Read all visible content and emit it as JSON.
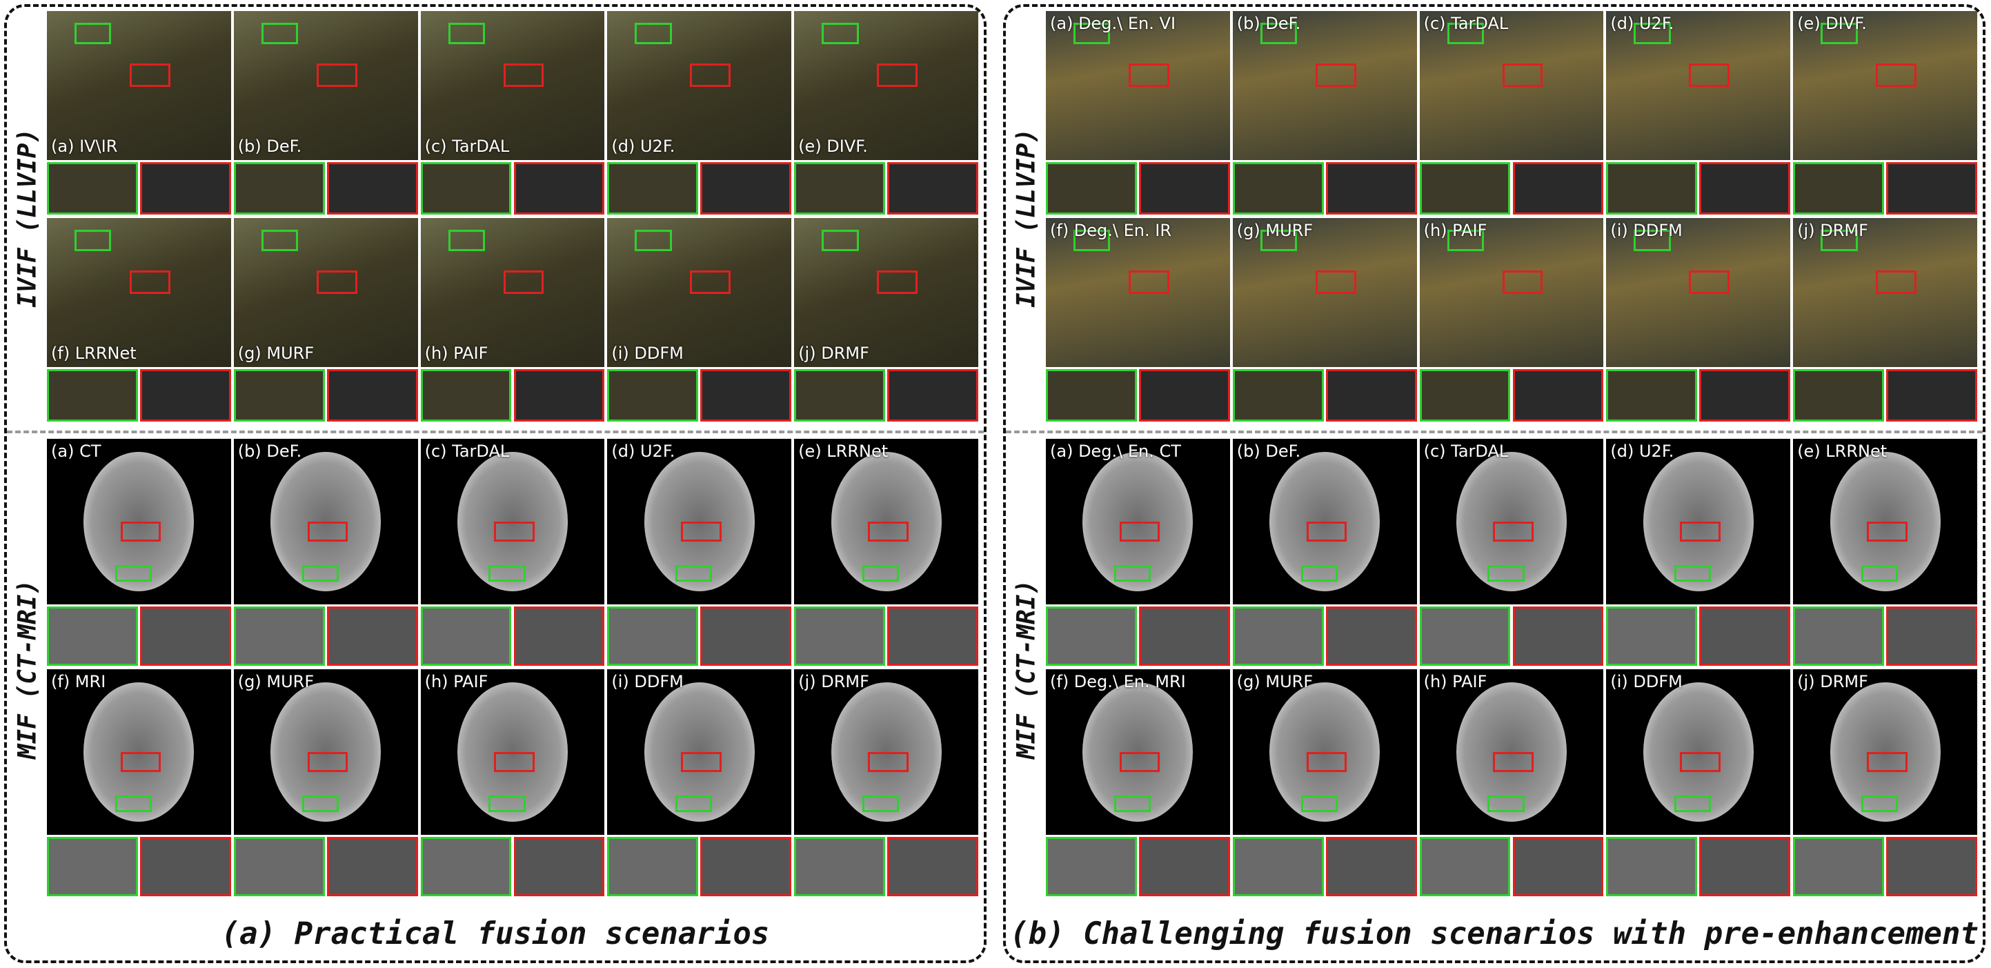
{
  "panels": [
    {
      "caption": "(a) Practical fusion scenarios",
      "sections": [
        {
          "label": "IVIF (LLVIP)",
          "cells": [
            "(a) IV\\IR",
            "(b) DeF.",
            "(c) TarDAL",
            "(d) U2F.",
            "(e) DIVF.",
            "(f) LRRNet",
            "(g) MURF",
            "(h) PAIF",
            "(i) DDFM",
            "(j) DRMF"
          ]
        },
        {
          "label": "MIF (CT-MRI)",
          "cells": [
            "(a) CT",
            "(b) DeF.",
            "(c) TarDAL",
            "(d) U2F.",
            "(e) LRRNet",
            "(f) MRI",
            "(g) MURF",
            "(h) PAIF",
            "(i) DDFM",
            "(j) DRMF"
          ]
        }
      ]
    },
    {
      "caption": "(b) Challenging fusion scenarios with pre-enhancement",
      "sections": [
        {
          "label": "IVIF (LLVIP)",
          "cells": [
            "(a) Deg.\\ En. VI",
            "(b) DeF.",
            "(c) TarDAL",
            "(d) U2F.",
            "(e) DIVF.",
            "(f) Deg.\\ En. IR",
            "(g) MURF",
            "(h) PAIF",
            "(i) DDFM",
            "(j) DRMF"
          ]
        },
        {
          "label": "MIF (CT-MRI)",
          "cells": [
            "(a) Deg.\\ En. CT",
            "(b) DeF.",
            "(c) TarDAL",
            "(d) U2F.",
            "(e) LRRNet",
            "(f) Deg.\\ En. MRI",
            "(g) MURF",
            "(h) PAIF",
            "(i) DDFM",
            "(j) DRMF"
          ]
        }
      ]
    }
  ]
}
